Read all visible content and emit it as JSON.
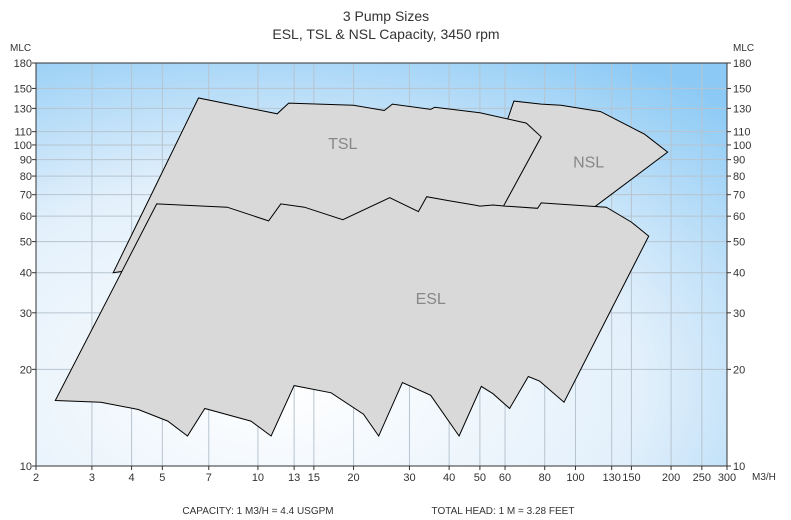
{
  "chart_data": {
    "type": "area",
    "title_line1": "3 Pump Sizes",
    "title_line2": "ESL, TSL & NSL Capacity, 3450 rpm",
    "y_unit_left": "MLC",
    "y_unit_right": "MLC",
    "x_unit": "M3/H",
    "x_scale": "log",
    "y_scale": "log",
    "xlim": [
      2,
      300
    ],
    "ylim": [
      10,
      180
    ],
    "x_ticks": [
      2,
      3,
      4,
      5,
      7,
      10,
      13,
      15,
      20,
      30,
      40,
      50,
      60,
      80,
      100,
      130,
      150,
      200,
      250,
      300
    ],
    "y_ticks": [
      10,
      20,
      30,
      40,
      50,
      60,
      70,
      80,
      90,
      100,
      110,
      130,
      150,
      180
    ],
    "grid": true,
    "footer_left": "CAPACITY: 1 M3/H = 4.4 USGPM",
    "footer_right": "TOTAL HEAD: 1 M = 3.28 FEET",
    "series": [
      {
        "name": "NSL",
        "points": [
          [
            48,
            60
          ],
          [
            64,
            137
          ],
          [
            78,
            134
          ],
          [
            90,
            133
          ],
          [
            120,
            127
          ],
          [
            165,
            108
          ],
          [
            195,
            95
          ],
          [
            105,
            60
          ],
          [
            48,
            60
          ]
        ]
      },
      {
        "name": "TSL",
        "points": [
          [
            3.5,
            40
          ],
          [
            6.5,
            140
          ],
          [
            11.5,
            125
          ],
          [
            12.5,
            135
          ],
          [
            20,
            133
          ],
          [
            25,
            128
          ],
          [
            26.5,
            134
          ],
          [
            35,
            129
          ],
          [
            36,
            131
          ],
          [
            50,
            126
          ],
          [
            70,
            117
          ],
          [
            78,
            106
          ],
          [
            57,
            60
          ],
          [
            3.5,
            40
          ]
        ]
      },
      {
        "name": "ESL",
        "points": [
          [
            2.3,
            16
          ],
          [
            3.2,
            15.8
          ],
          [
            4.2,
            15
          ],
          [
            5.2,
            13.8
          ],
          [
            6,
            12.4
          ],
          [
            6.8,
            15.1
          ],
          [
            9.5,
            13.8
          ],
          [
            11,
            12.4
          ],
          [
            13,
            17.8
          ],
          [
            17,
            16.9
          ],
          [
            21.5,
            14.5
          ],
          [
            24,
            12.4
          ],
          [
            28.5,
            18.2
          ],
          [
            35,
            16.6
          ],
          [
            43,
            12.4
          ],
          [
            50.5,
            17.7
          ],
          [
            55,
            16.8
          ],
          [
            62,
            15.1
          ],
          [
            71,
            19
          ],
          [
            77,
            18.4
          ],
          [
            92,
            15.8
          ],
          [
            170,
            52
          ],
          [
            150,
            57.5
          ],
          [
            125,
            64
          ],
          [
            78,
            66
          ],
          [
            76,
            63.5
          ],
          [
            60,
            64.5
          ],
          [
            55,
            65
          ],
          [
            50,
            64.5
          ],
          [
            48,
            65
          ],
          [
            40,
            67
          ],
          [
            34,
            69
          ],
          [
            32,
            62
          ],
          [
            26,
            68.5
          ],
          [
            18.5,
            58.5
          ],
          [
            14,
            64
          ],
          [
            11.8,
            65.5
          ],
          [
            10.8,
            58
          ],
          [
            8,
            64
          ],
          [
            4.8,
            65.5
          ],
          [
            2.3,
            16
          ]
        ]
      }
    ]
  }
}
